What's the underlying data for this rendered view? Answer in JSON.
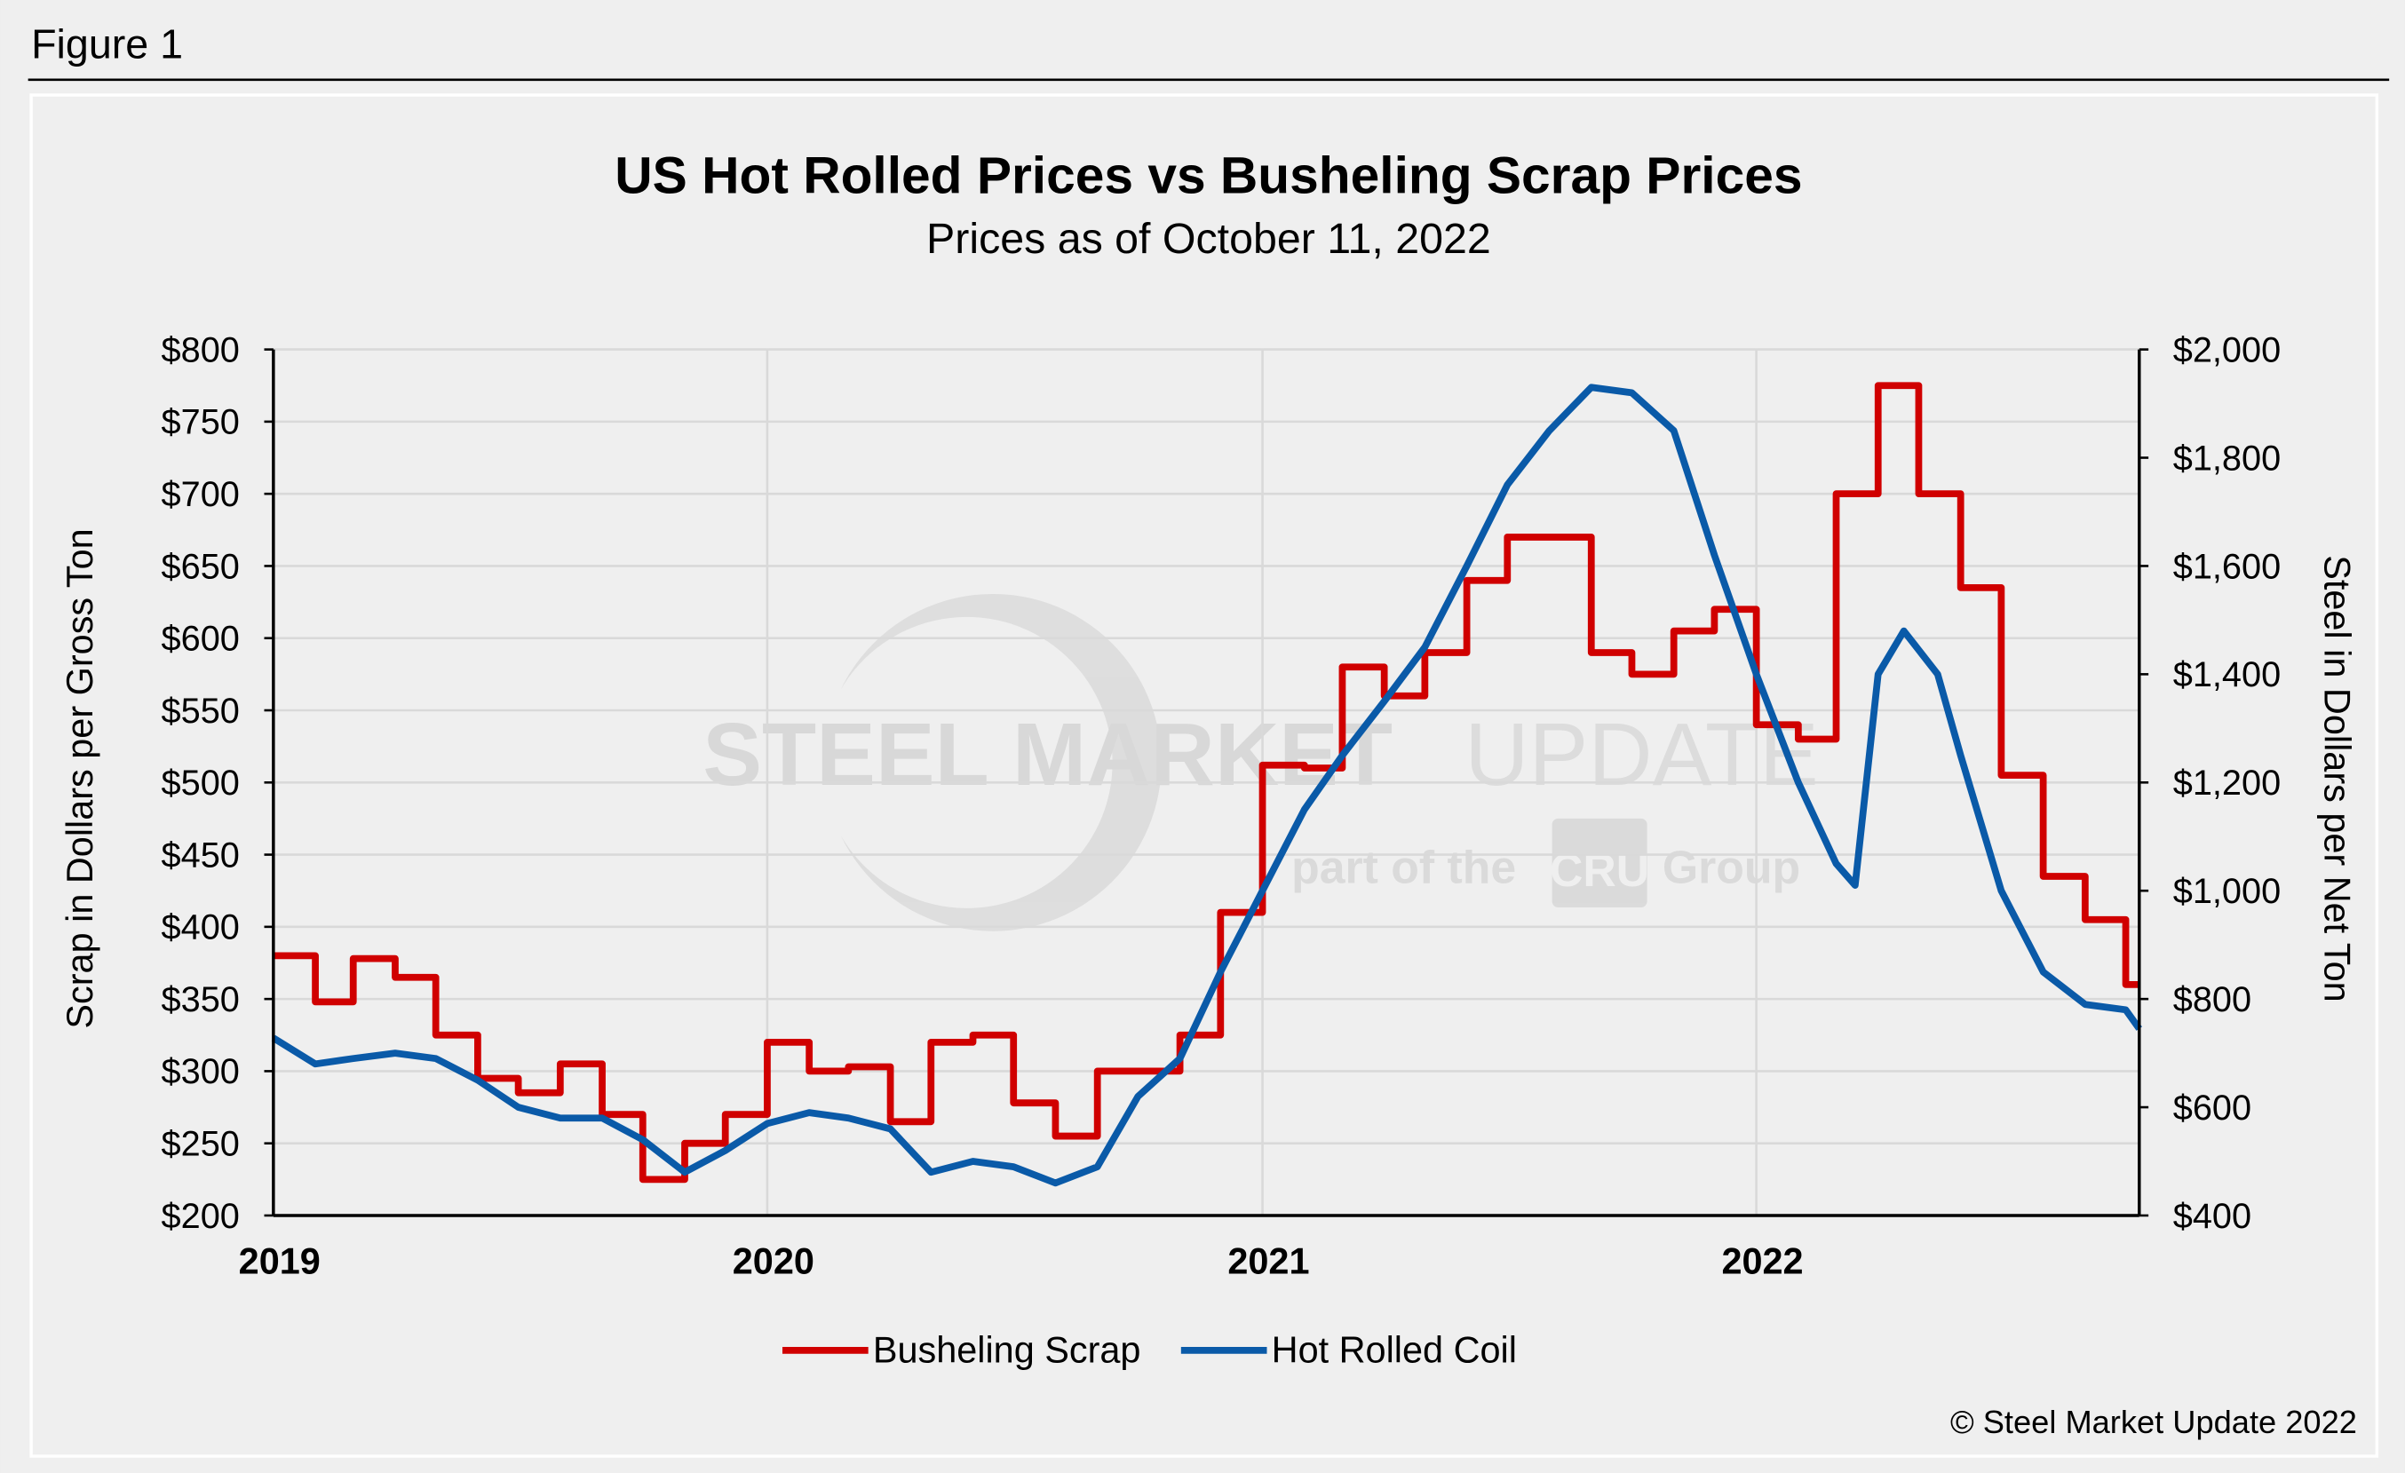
{
  "figure_label": "Figure 1",
  "copyright": "© Steel Market Update 2022",
  "watermark": {
    "main_bold": "STEEL MARKET",
    "main_light": "UPDATE",
    "sub_left": "part of the",
    "sub_logo": "CRU",
    "sub_right": "Group"
  },
  "colors": {
    "scrap": "#d00000",
    "hrc": "#0a5aa8",
    "grid": "#d9d9d9",
    "background": "#efefef"
  },
  "chart_data": {
    "type": "line",
    "title": "US Hot Rolled Prices vs Busheling Scrap Prices",
    "subtitle": "Prices as of October 11, 2022",
    "ylabel": "Scrap in Dollars per Gross Ton",
    "y2label": "Steel in Dollars per Net Ton",
    "xlim": [
      "2019-01-01",
      "2022-10-11"
    ],
    "ylim": [
      200,
      800
    ],
    "y2lim": [
      400,
      2000
    ],
    "x_ticks": [
      "2019",
      "2020",
      "2021",
      "2022"
    ],
    "y_ticks": [
      "$200",
      "$250",
      "$300",
      "$350",
      "$400",
      "$450",
      "$500",
      "$550",
      "$600",
      "$650",
      "$700",
      "$750",
      "$800"
    ],
    "y2_ticks": [
      "$400",
      "$600",
      "$800",
      "$1,000",
      "$1,200",
      "$1,400",
      "$1,600",
      "$1,800",
      "$2,000"
    ],
    "grid": true,
    "legend": "bottom",
    "series": [
      {
        "name": "Busheling Scrap",
        "axis": "left",
        "step": true,
        "x": [
          "2019-01-01",
          "2019-02-01",
          "2019-03-01",
          "2019-04-01",
          "2019-05-01",
          "2019-06-01",
          "2019-07-01",
          "2019-08-01",
          "2019-09-01",
          "2019-10-01",
          "2019-11-01",
          "2019-12-01",
          "2020-01-01",
          "2020-02-01",
          "2020-03-01",
          "2020-04-01",
          "2020-05-01",
          "2020-06-01",
          "2020-07-01",
          "2020-08-01",
          "2020-09-01",
          "2020-10-01",
          "2020-11-01",
          "2020-12-01",
          "2021-01-01",
          "2021-02-01",
          "2021-03-01",
          "2021-04-01",
          "2021-05-01",
          "2021-06-01",
          "2021-07-01",
          "2021-08-01",
          "2021-09-01",
          "2021-10-01",
          "2021-11-01",
          "2021-12-01",
          "2022-01-01",
          "2022-02-01",
          "2022-03-01",
          "2022-04-01",
          "2022-05-01",
          "2022-06-01",
          "2022-07-01",
          "2022-08-01",
          "2022-09-01",
          "2022-10-01",
          "2022-10-11"
        ],
        "values": [
          380,
          348,
          378,
          365,
          325,
          295,
          285,
          305,
          270,
          225,
          250,
          270,
          320,
          300,
          303,
          265,
          320,
          325,
          278,
          255,
          300,
          300,
          325,
          410,
          512,
          510,
          580,
          560,
          590,
          640,
          670,
          670,
          590,
          575,
          605,
          620,
          540,
          530,
          700,
          775,
          700,
          635,
          505,
          435,
          405,
          360,
          360
        ]
      },
      {
        "name": "Hot Rolled Coil",
        "axis": "right",
        "step": false,
        "x": [
          "2019-01-01",
          "2019-02-01",
          "2019-03-01",
          "2019-04-01",
          "2019-05-01",
          "2019-06-01",
          "2019-07-01",
          "2019-08-01",
          "2019-09-01",
          "2019-10-01",
          "2019-11-01",
          "2019-12-01",
          "2020-01-01",
          "2020-02-01",
          "2020-03-01",
          "2020-04-01",
          "2020-05-01",
          "2020-06-01",
          "2020-07-01",
          "2020-08-01",
          "2020-09-01",
          "2020-10-01",
          "2020-11-01",
          "2020-12-01",
          "2021-01-01",
          "2021-02-01",
          "2021-03-01",
          "2021-04-01",
          "2021-05-01",
          "2021-06-01",
          "2021-07-01",
          "2021-08-01",
          "2021-09-01",
          "2021-10-01",
          "2021-11-01",
          "2021-12-01",
          "2022-01-01",
          "2022-02-01",
          "2022-03-01",
          "2022-03-15",
          "2022-04-01",
          "2022-04-20",
          "2022-05-15",
          "2022-06-01",
          "2022-07-01",
          "2022-08-01",
          "2022-09-01",
          "2022-10-01",
          "2022-10-11"
        ],
        "values": [
          728,
          680,
          690,
          700,
          690,
          650,
          600,
          580,
          580,
          540,
          480,
          520,
          570,
          590,
          580,
          560,
          480,
          500,
          490,
          460,
          490,
          620,
          690,
          850,
          1000,
          1150,
          1250,
          1350,
          1450,
          1600,
          1750,
          1850,
          1930,
          1920,
          1850,
          1620,
          1400,
          1200,
          1050,
          1010,
          1400,
          1480,
          1400,
          1250,
          1000,
          850,
          790,
          780,
          745
        ]
      }
    ]
  }
}
